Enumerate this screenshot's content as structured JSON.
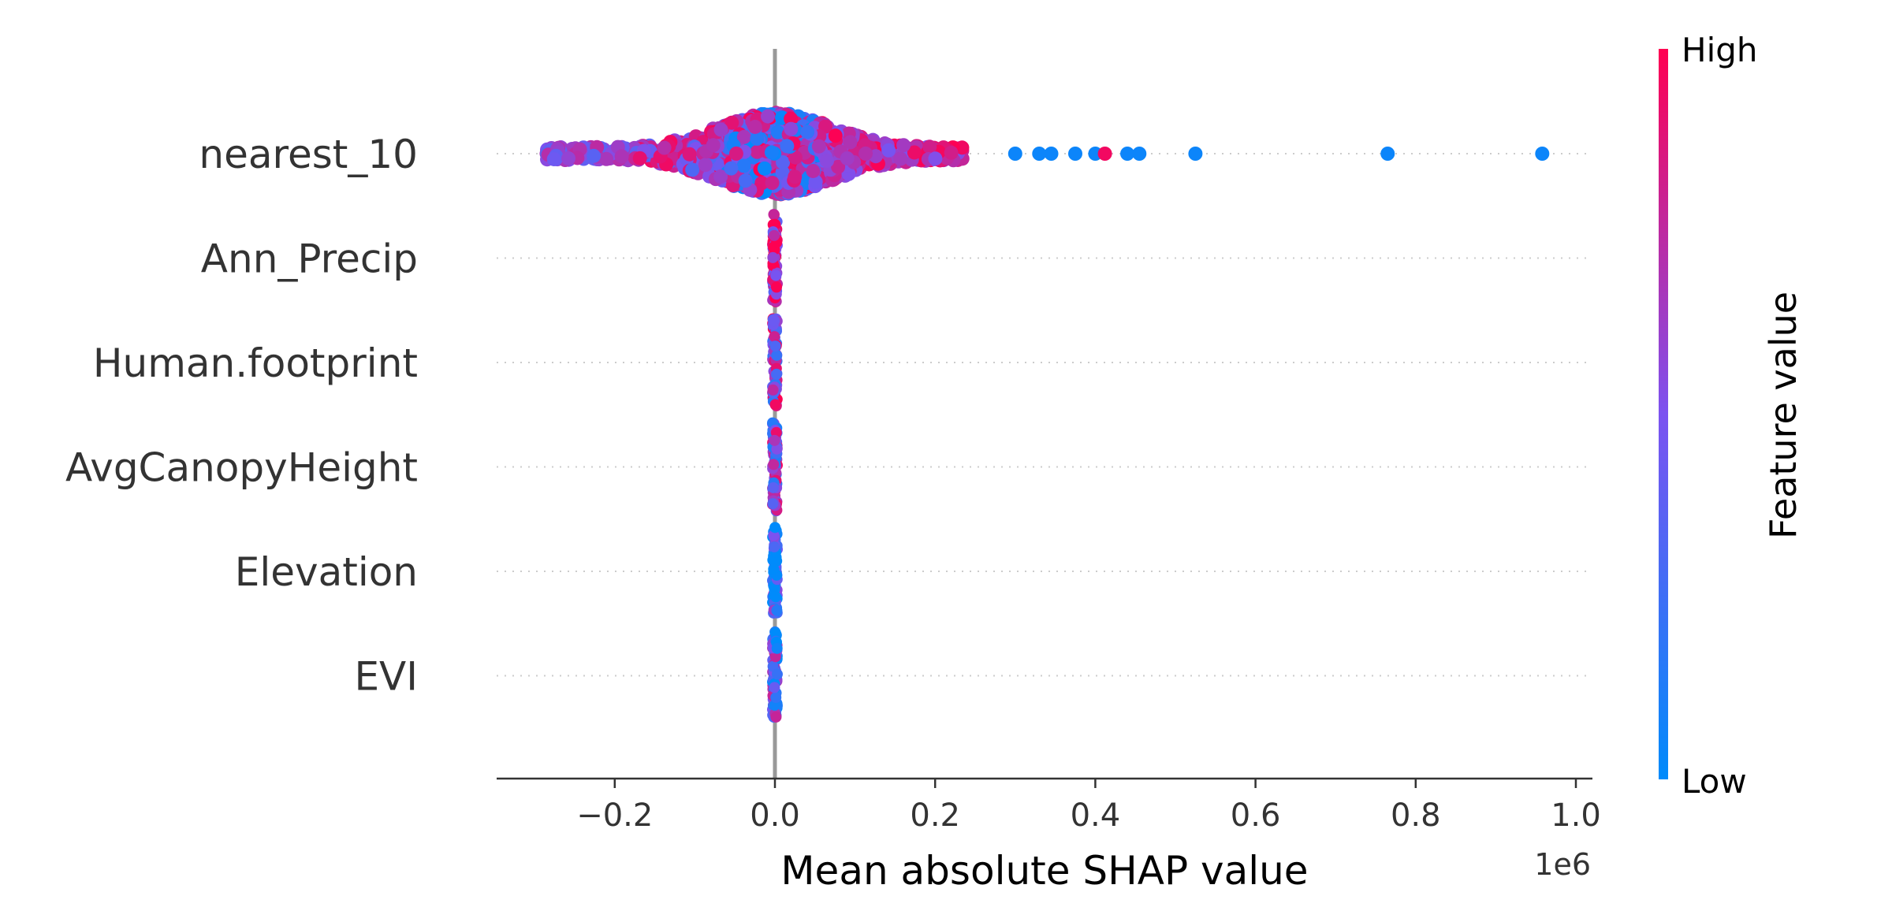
{
  "chart_data": {
    "type": "scatter",
    "subtype": "shap-beeswarm",
    "features": [
      {
        "name": "nearest_10",
        "spread": [
          -290000,
          960000
        ]
      },
      {
        "name": "Ann_Precip",
        "spread": [
          -3000,
          3000
        ]
      },
      {
        "name": "Human.footprint",
        "spread": [
          -3000,
          3000
        ]
      },
      {
        "name": "AvgCanopyHeight",
        "spread": [
          -3000,
          3000
        ]
      },
      {
        "name": "Elevation",
        "spread": [
          -3000,
          3000
        ]
      },
      {
        "name": "EVI",
        "spread": [
          -3000,
          3000
        ]
      }
    ],
    "outliers": [
      {
        "feature": "nearest_10",
        "x": 300000,
        "level": 0.05
      },
      {
        "feature": "nearest_10",
        "x": 330000,
        "level": 0.05
      },
      {
        "feature": "nearest_10",
        "x": 345000,
        "level": 0.05
      },
      {
        "feature": "nearest_10",
        "x": 375000,
        "level": 0.05
      },
      {
        "feature": "nearest_10",
        "x": 400000,
        "level": 0.05
      },
      {
        "feature": "nearest_10",
        "x": 412000,
        "level": 0.95
      },
      {
        "feature": "nearest_10",
        "x": 440000,
        "level": 0.05
      },
      {
        "feature": "nearest_10",
        "x": 455000,
        "level": 0.05
      },
      {
        "feature": "nearest_10",
        "x": 525000,
        "level": 0.05
      },
      {
        "feature": "nearest_10",
        "x": 765000,
        "level": 0.05
      },
      {
        "feature": "nearest_10",
        "x": 958000,
        "level": 0.05
      }
    ],
    "xlabel": "Mean absolute SHAP value",
    "x_offset_label": "1e6",
    "xlim": [
      -350000,
      1020000
    ],
    "xticks": [
      {
        "value": -200000,
        "label": "−0.2"
      },
      {
        "value": 0,
        "label": "0.0"
      },
      {
        "value": 200000,
        "label": "0.2"
      },
      {
        "value": 400000,
        "label": "0.4"
      },
      {
        "value": 600000,
        "label": "0.6"
      },
      {
        "value": 800000,
        "label": "0.8"
      },
      {
        "value": 1000000,
        "label": "1.0"
      }
    ],
    "colorbar": {
      "title": "Feature value",
      "high_label": "High",
      "low_label": "Low",
      "low_color": "#008bfb",
      "mid_color": "#7c52f0",
      "high_color": "#ff0051"
    },
    "zero_line_color": "#999999",
    "grid": "dotted-horizontal"
  }
}
